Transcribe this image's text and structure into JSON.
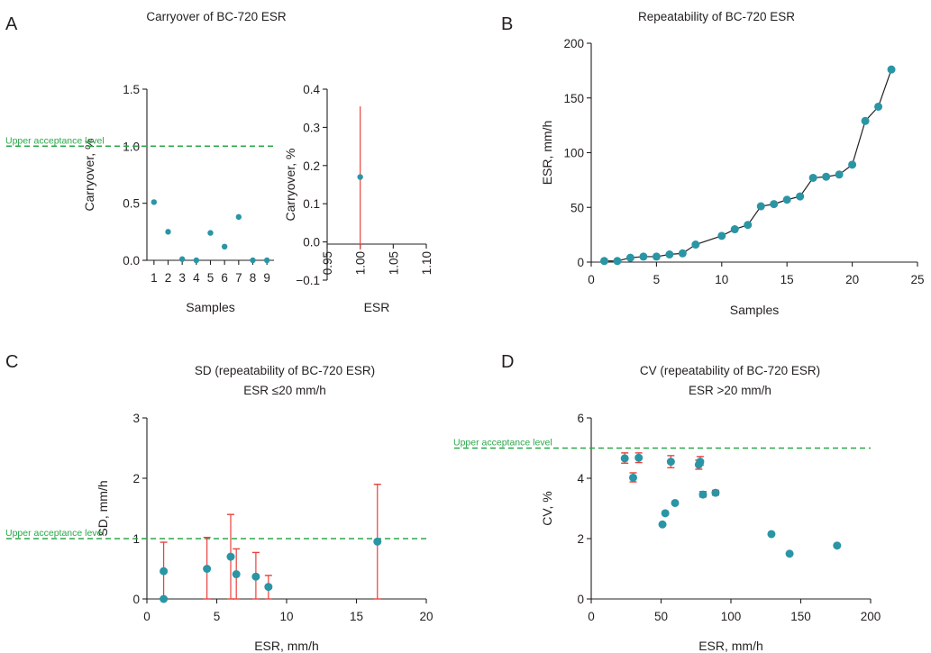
{
  "colors": {
    "point": "#2a95a5",
    "error_bar": "#e8413c",
    "acceptance_line": "#2ba84a",
    "axis": "#231f20"
  },
  "chart_data": [
    {
      "panel": "A",
      "type": "scatter",
      "title": "Carryover of BC-720 ESR",
      "xlabel": "Samples",
      "ylabel": "Carryover, %",
      "xlim": [
        0.5,
        9.5
      ],
      "ylim": [
        0,
        1.5
      ],
      "xticks": [
        "1",
        "2",
        "3",
        "4",
        "5",
        "6",
        "7",
        "8",
        "9"
      ],
      "yticks": [
        "0.0",
        "0.5",
        "1.0",
        "1.5"
      ],
      "series": [
        {
          "x": [
            1,
            2,
            3,
            4,
            5,
            6,
            7,
            8,
            9
          ],
          "y": [
            0.51,
            0.25,
            0.01,
            0.0,
            0.24,
            0.12,
            0.38,
            0.0,
            0.0
          ]
        }
      ],
      "reference_line": {
        "y": 1.0,
        "label": "Upper acceptance level"
      },
      "grid": false
    },
    {
      "panel": "A-inset",
      "type": "scatter",
      "title": "",
      "xlabel": "ESR",
      "ylabel": "Carryover, %",
      "xlim": [
        0.95,
        1.1
      ],
      "ylim": [
        -0.1,
        0.4
      ],
      "xticks": [
        "0.95",
        "1.00",
        "1.05",
        "1.10"
      ],
      "yticks": [
        "−0.1",
        "0.0",
        "0.1",
        "0.2",
        "0.3",
        "0.4"
      ],
      "series": [
        {
          "x": [
            1.0
          ],
          "y": [
            0.17
          ],
          "err_low": [
            -0.02
          ],
          "err_high": [
            0.355
          ]
        }
      ],
      "grid": false
    },
    {
      "panel": "B",
      "type": "line",
      "title": "Repeatability of BC-720 ESR",
      "xlabel": "Samples",
      "ylabel": "ESR, mm/h",
      "xlim": [
        0,
        25
      ],
      "ylim": [
        0,
        200
      ],
      "xticks": [
        "0",
        "5",
        "10",
        "15",
        "20",
        "25"
      ],
      "yticks": [
        "0",
        "50",
        "100",
        "150",
        "200"
      ],
      "series": [
        {
          "x": [
            1,
            2,
            3,
            4,
            5,
            6,
            7,
            8,
            10,
            11,
            12,
            13,
            14,
            15,
            16,
            17,
            18,
            19,
            20,
            21,
            22,
            23
          ],
          "y": [
            1,
            1,
            4,
            5,
            5,
            7,
            8,
            16,
            24,
            30,
            34,
            51,
            53,
            57,
            60,
            77,
            78,
            80,
            89,
            129,
            142,
            176
          ]
        }
      ],
      "grid": false
    },
    {
      "panel": "C",
      "type": "scatter",
      "title": "SD (repeatability of BC-720 ESR)",
      "subtitle": "ESR ≤20 mm/h",
      "xlabel": "ESR, mm/h",
      "ylabel": "SD, mm/h",
      "xlim": [
        0,
        20
      ],
      "ylim": [
        0,
        3
      ],
      "xticks": [
        "0",
        "5",
        "10",
        "15",
        "20"
      ],
      "yticks": [
        "0",
        "1",
        "2",
        "3"
      ],
      "series": [
        {
          "x": [
            1.2,
            1.2,
            4.3,
            6.0,
            6.4,
            7.8,
            8.7,
            16.5
          ],
          "y": [
            0.46,
            0.0,
            0.5,
            0.7,
            0.41,
            0.37,
            0.2,
            0.95
          ],
          "err_low": [
            0.0,
            0.0,
            0.0,
            0.0,
            0.0,
            0.0,
            0.0,
            0.0
          ],
          "err_high": [
            0.94,
            0.0,
            1.02,
            1.4,
            0.83,
            0.77,
            0.39,
            1.9
          ]
        }
      ],
      "reference_line": {
        "y": 1.0,
        "label": "Upper acceptance level"
      },
      "grid": false
    },
    {
      "panel": "D",
      "type": "scatter",
      "title": "CV (repeatability of BC-720 ESR)",
      "subtitle": "ESR >20 mm/h",
      "xlabel": "ESR, mm/h",
      "ylabel": "CV, %",
      "xlim": [
        0,
        200
      ],
      "ylim": [
        0,
        6
      ],
      "xticks": [
        "0",
        "50",
        "100",
        "150",
        "200"
      ],
      "yticks": [
        "0",
        "2",
        "4",
        "6"
      ],
      "series": [
        {
          "x": [
            24,
            30,
            34,
            51,
            53,
            57,
            60,
            77,
            78,
            80,
            89,
            129,
            142,
            176
          ],
          "y": [
            4.66,
            4.02,
            4.68,
            2.47,
            2.84,
            4.55,
            3.18,
            4.45,
            4.55,
            3.46,
            3.52,
            2.15,
            1.5,
            1.77
          ],
          "err_low": [
            4.5,
            3.88,
            4.52,
            2.47,
            2.84,
            4.35,
            3.18,
            4.3,
            4.44,
            3.38,
            3.44,
            2.15,
            1.5,
            1.77
          ],
          "err_high": [
            4.84,
            4.18,
            4.84,
            2.47,
            2.84,
            4.75,
            3.18,
            4.6,
            4.72,
            3.56,
            3.6,
            2.15,
            1.5,
            1.77
          ]
        }
      ],
      "reference_line": {
        "y": 5.0,
        "label": "Upper acceptance level"
      },
      "grid": false
    }
  ],
  "panel_letters": {
    "a": "A",
    "b": "B",
    "c": "C",
    "d": "D"
  },
  "titles": {
    "a": "Carryover of BC-720 ESR",
    "b": "Repeatability of BC-720 ESR",
    "c1": "SD (repeatability of BC-720 ESR)",
    "c2": "ESR ≤20 mm/h",
    "d1": "CV (repeatability of BC-720 ESR)",
    "d2": "ESR >20 mm/h"
  },
  "acceptance_label": "Upper acceptance level"
}
